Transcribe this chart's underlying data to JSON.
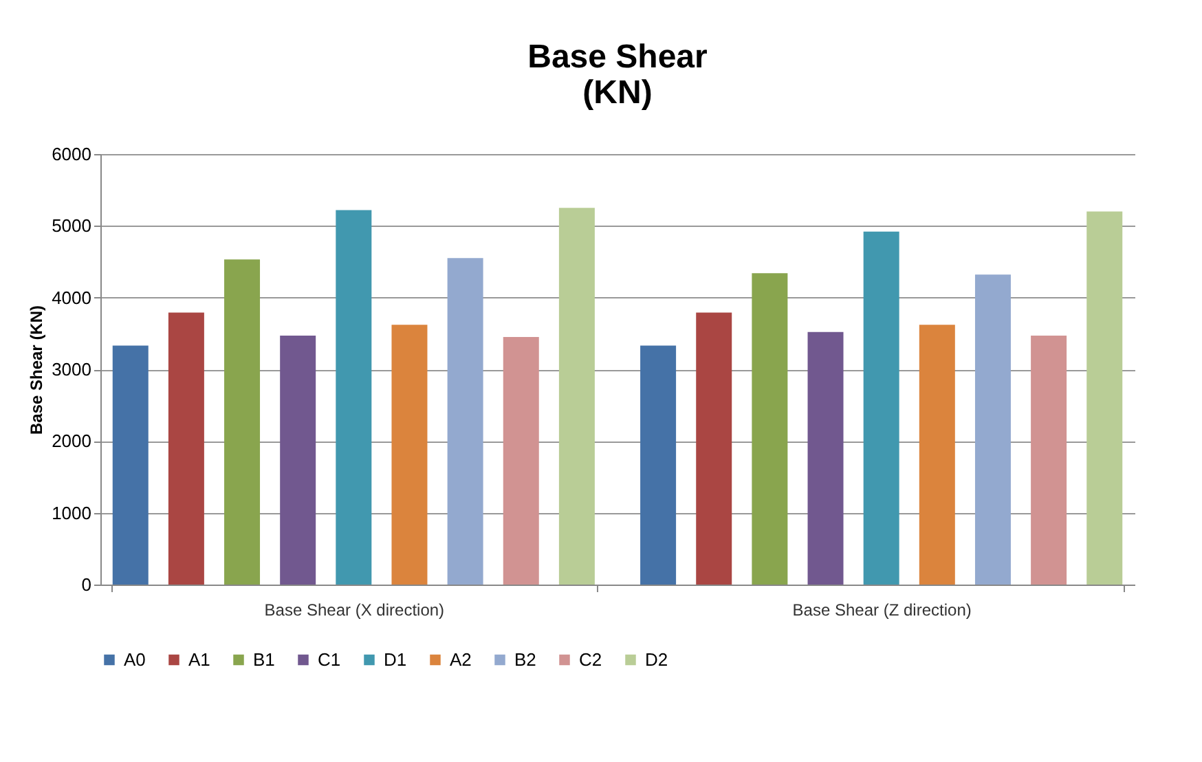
{
  "chart_data": {
    "type": "bar",
    "title": "Base Shear\n(KN)",
    "ylabel": "Base Shear (KN)",
    "categories": [
      "Base Shear (X direction)",
      "Base Shear (Z direction)"
    ],
    "series": [
      {
        "name": "A0",
        "color": "#4572a7",
        "values": [
          3330,
          3330
        ]
      },
      {
        "name": "A1",
        "color": "#aa4643",
        "values": [
          3790,
          3790
        ]
      },
      {
        "name": "B1",
        "color": "#89a54e",
        "values": [
          4530,
          4340
        ]
      },
      {
        "name": "C1",
        "color": "#71588f",
        "values": [
          3470,
          3520
        ]
      },
      {
        "name": "D1",
        "color": "#4198af",
        "values": [
          5220,
          4920
        ]
      },
      {
        "name": "A2",
        "color": "#db843d",
        "values": [
          3620,
          3620
        ]
      },
      {
        "name": "B2",
        "color": "#93a9cf",
        "values": [
          4550,
          4320
        ]
      },
      {
        "name": "C2",
        "color": "#d19392",
        "values": [
          3450,
          3470
        ]
      },
      {
        "name": "D2",
        "color": "#b9cd96",
        "values": [
          5250,
          5200
        ]
      }
    ],
    "ylim": [
      0,
      6000
    ],
    "yticks": [
      0,
      1000,
      2000,
      3000,
      4000,
      5000,
      6000
    ],
    "grid": "y",
    "legend": "bottom"
  }
}
